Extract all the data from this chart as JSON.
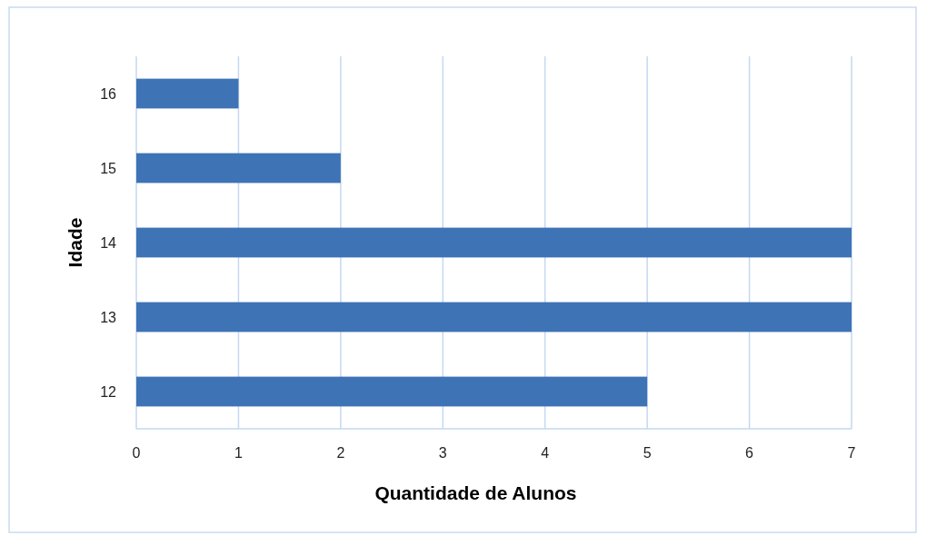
{
  "chart_data": {
    "type": "bar",
    "orientation": "horizontal",
    "xlabel": "Quantidade de Alunos",
    "ylabel": "Idade",
    "categories": [
      "16",
      "15",
      "14",
      "13",
      "12"
    ],
    "values": [
      1,
      2,
      7,
      7,
      5
    ],
    "color": "#3e73b6",
    "xlim": [
      0,
      7
    ],
    "xticks": [
      0,
      1,
      2,
      3,
      4,
      5,
      6,
      7
    ],
    "grid": "x"
  }
}
